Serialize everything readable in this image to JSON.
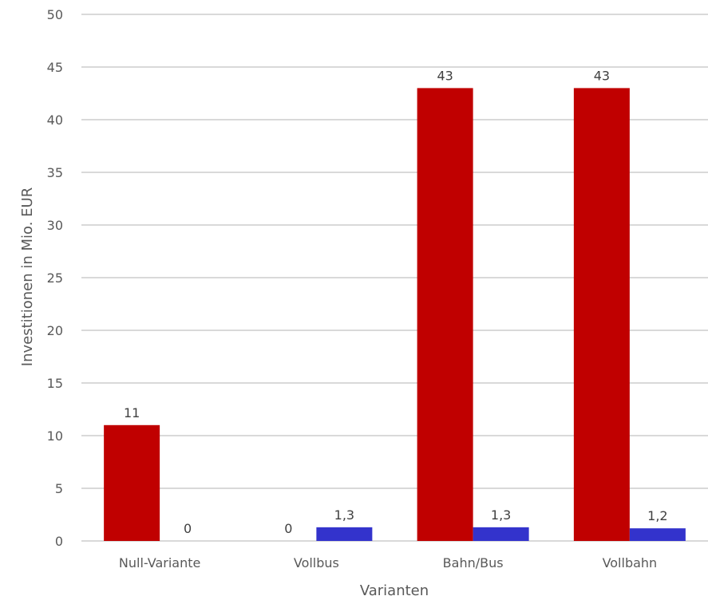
{
  "chart_data": {
    "type": "bar",
    "categories": [
      "Null-Variante",
      "Vollbus",
      "Bahn/Bus",
      "Vollbahn"
    ],
    "series": [
      {
        "values": [
          11,
          0,
          43,
          43
        ],
        "labels": [
          "11",
          "0",
          "43",
          "43"
        ],
        "color": "#C00000"
      },
      {
        "values": [
          0,
          1.3,
          1.3,
          1.2
        ],
        "labels": [
          "0",
          "1,3",
          "1,3",
          "1,2"
        ],
        "color": "#3333CC"
      }
    ],
    "title": "",
    "xlabel": "Varianten",
    "ylabel": "Investitionen in Mio. EUR",
    "ylim": [
      0,
      50
    ],
    "yticks": [
      0,
      5,
      10,
      15,
      20,
      25,
      30,
      35,
      40,
      45,
      50
    ],
    "ytick_labels": [
      "0",
      "5",
      "10",
      "15",
      "20",
      "25",
      "30",
      "35",
      "40",
      "45",
      "50"
    ],
    "grid": true,
    "legend": "none"
  }
}
